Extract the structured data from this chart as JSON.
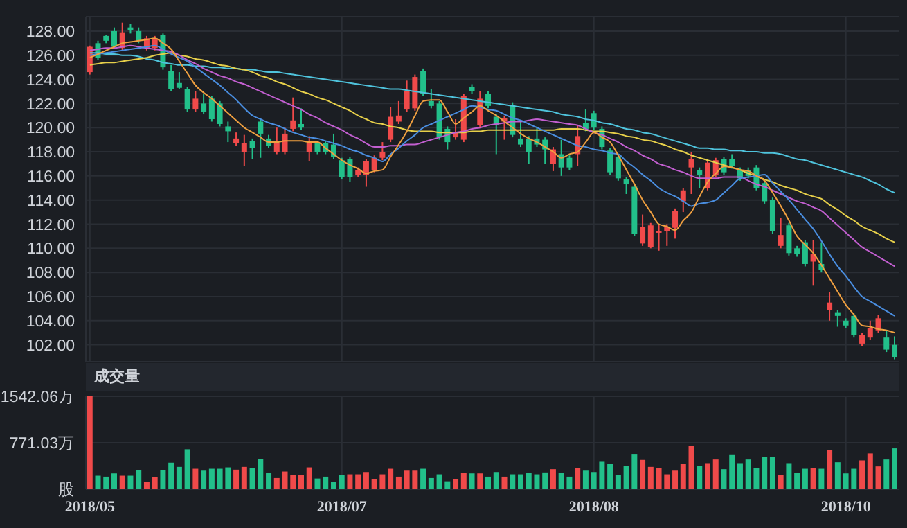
{
  "chart_data": [
    {
      "type": "candlestick",
      "categories": [
        "2018/05",
        null,
        null,
        null,
        null,
        null,
        null,
        null,
        null,
        null,
        null,
        null,
        null,
        null,
        null,
        null,
        null,
        null,
        null,
        null,
        null,
        null,
        null,
        null,
        null,
        null,
        null,
        null,
        null,
        null,
        null,
        "2018/07",
        null,
        null,
        null,
        null,
        null,
        null,
        null,
        null,
        null,
        null,
        null,
        null,
        null,
        null,
        null,
        null,
        null,
        null,
        null,
        null,
        null,
        null,
        null,
        null,
        null,
        null,
        null,
        null,
        null,
        null,
        "2018/08",
        null,
        null,
        null,
        null,
        null,
        null,
        null,
        null,
        null,
        null,
        null,
        null,
        null,
        null,
        null,
        null,
        null,
        null,
        null,
        null,
        null,
        null,
        null,
        null,
        null,
        null,
        null,
        null,
        null,
        null,
        "2018/10",
        null,
        null,
        null,
        null,
        null,
        null
      ],
      "ohlc": [
        [
          124.6,
          126.8,
          124.4,
          126.7
        ],
        [
          127.0,
          127.2,
          125.6,
          125.8
        ],
        [
          127.6,
          127.7,
          127.0,
          127.2
        ],
        [
          128.0,
          128.3,
          126.5,
          126.7
        ],
        [
          126.6,
          128.7,
          126.4,
          127.9
        ],
        [
          128.3,
          128.6,
          127.8,
          128.1
        ],
        [
          128.0,
          128.3,
          127.0,
          127.2
        ],
        [
          126.6,
          127.6,
          126.4,
          127.4
        ],
        [
          126.6,
          127.6,
          126.4,
          127.4
        ],
        [
          127.7,
          127.8,
          124.8,
          125.0
        ],
        [
          124.7,
          125.2,
          123.0,
          123.2
        ],
        [
          123.7,
          124.6,
          123.2,
          123.3
        ],
        [
          123.2,
          123.4,
          121.3,
          121.5
        ],
        [
          121.5,
          123.0,
          121.3,
          122.4
        ],
        [
          122.0,
          122.8,
          121.1,
          121.3
        ],
        [
          122.4,
          122.6,
          120.5,
          120.7
        ],
        [
          122.0,
          122.2,
          120.1,
          120.3
        ],
        [
          120.1,
          120.5,
          118.8,
          119.7
        ],
        [
          118.7,
          119.6,
          118.5,
          119.1
        ],
        [
          118.0,
          119.4,
          116.8,
          118.7
        ],
        [
          118.9,
          119.1,
          117.4,
          118.3
        ],
        [
          120.5,
          120.7,
          117.5,
          119.5
        ],
        [
          119.1,
          119.4,
          118.3,
          118.5
        ],
        [
          118.0,
          120.0,
          117.8,
          118.7
        ],
        [
          118.0,
          120.0,
          117.8,
          119.5
        ],
        [
          119.9,
          122.5,
          119.7,
          120.6
        ],
        [
          120.3,
          121.6,
          119.8,
          120.0
        ],
        [
          118.0,
          119.3,
          117.2,
          118.7
        ],
        [
          118.7,
          118.9,
          117.8,
          118.0
        ],
        [
          118.7,
          118.9,
          117.8,
          118.0
        ],
        [
          118.6,
          119.5,
          117.4,
          117.6
        ],
        [
          117.3,
          117.5,
          115.7,
          115.9
        ],
        [
          117.4,
          117.6,
          115.5,
          115.9
        ],
        [
          116.1,
          116.7,
          115.9,
          116.5
        ],
        [
          116.1,
          117.4,
          115.1,
          117.2
        ],
        [
          116.5,
          117.7,
          116.3,
          117.5
        ],
        [
          117.5,
          118.8,
          117.3,
          118.0
        ],
        [
          119.0,
          121.7,
          118.8,
          120.9
        ],
        [
          120.5,
          122.2,
          120.3,
          121.0
        ],
        [
          121.5,
          123.9,
          121.3,
          123.0
        ],
        [
          121.6,
          124.4,
          121.4,
          124.2
        ],
        [
          124.7,
          124.9,
          122.6,
          122.8
        ],
        [
          122.2,
          123.2,
          121.6,
          121.8
        ],
        [
          122.0,
          122.2,
          119.0,
          119.2
        ],
        [
          119.9,
          120.1,
          118.2,
          118.8
        ],
        [
          119.2,
          120.7,
          119.0,
          119.6
        ],
        [
          119.0,
          122.8,
          118.8,
          122.6
        ],
        [
          123.4,
          123.6,
          122.8,
          123.0
        ],
        [
          120.2,
          123.0,
          120.0,
          122.4
        ],
        [
          122.8,
          123.0,
          121.6,
          121.8
        ],
        [
          120.9,
          121.1,
          117.8,
          120.2
        ],
        [
          120.5,
          121.0,
          119.0,
          120.8
        ],
        [
          121.9,
          122.1,
          119.2,
          119.4
        ],
        [
          119.1,
          120.5,
          118.4,
          118.6
        ],
        [
          119.1,
          119.3,
          117.0,
          118.0
        ],
        [
          119.1,
          120.0,
          118.4,
          118.6
        ],
        [
          119.0,
          119.2,
          117.0,
          118.2
        ],
        [
          117.0,
          118.4,
          116.4,
          118.2
        ],
        [
          117.8,
          119.0,
          116.0,
          116.7
        ],
        [
          117.5,
          117.7,
          116.5,
          116.7
        ],
        [
          117.8,
          120.2,
          116.8,
          119.3
        ],
        [
          120.4,
          121.5,
          119.7,
          119.9
        ],
        [
          121.2,
          121.4,
          119.8,
          120.0
        ],
        [
          119.9,
          120.1,
          118.2,
          118.4
        ],
        [
          118.1,
          118.3,
          116.1,
          116.3
        ],
        [
          117.6,
          117.8,
          115.6,
          115.8
        ],
        [
          115.7,
          115.9,
          114.5,
          115.3
        ],
        [
          115.1,
          115.3,
          111.0,
          111.2
        ],
        [
          110.4,
          112.8,
          110.2,
          111.8
        ],
        [
          110.1,
          112.1,
          110.0,
          111.9
        ],
        [
          111.3,
          112.0,
          109.8,
          111.4
        ],
        [
          111.4,
          112.0,
          110.2,
          111.8
        ],
        [
          111.7,
          113.3,
          110.8,
          113.1
        ],
        [
          113.9,
          115.0,
          113.0,
          114.8
        ],
        [
          116.7,
          118.0,
          114.5,
          117.4
        ],
        [
          116.5,
          116.7,
          115.0,
          116.1
        ],
        [
          115.0,
          117.3,
          114.8,
          117.1
        ],
        [
          116.1,
          117.5,
          115.9,
          117.3
        ],
        [
          117.4,
          117.6,
          116.1,
          116.3
        ],
        [
          117.4,
          117.8,
          116.6,
          116.8
        ],
        [
          116.5,
          116.7,
          115.6,
          115.8
        ],
        [
          116.5,
          116.7,
          115.8,
          116.0
        ],
        [
          116.7,
          116.9,
          114.8,
          115.0
        ],
        [
          115.4,
          115.6,
          113.7,
          113.9
        ],
        [
          114.0,
          114.2,
          111.2,
          111.4
        ],
        [
          110.2,
          112.5,
          110.0,
          111.1
        ],
        [
          111.9,
          112.1,
          109.4,
          109.6
        ],
        [
          110.0,
          110.2,
          109.3,
          109.5
        ],
        [
          110.5,
          110.7,
          108.5,
          108.7
        ],
        [
          108.9,
          110.7,
          106.9,
          109.5
        ],
        [
          108.7,
          110.5,
          108.0,
          108.2
        ],
        [
          104.9,
          106.4,
          104.0,
          105.5
        ],
        [
          104.7,
          104.9,
          103.5,
          104.4
        ],
        [
          104.0,
          104.2,
          103.4,
          103.6
        ],
        [
          104.4,
          104.6,
          102.6,
          102.8
        ],
        [
          102.1,
          103.0,
          101.9,
          102.8
        ],
        [
          102.6,
          104.0,
          102.4,
          103.4
        ],
        [
          103.2,
          104.5,
          103.0,
          104.2
        ],
        [
          102.6,
          103.2,
          101.4,
          101.6
        ],
        [
          102.0,
          102.7,
          100.8,
          101.0
        ]
      ],
      "colors": [
        "#f04a4a",
        "#22c08a",
        "#22c08a",
        "#22c08a",
        "#f04a4a",
        "#22c08a",
        "#22c08a",
        "#f04a4a",
        "#f04a4a",
        "#22c08a",
        "#22c08a",
        "#22c08a",
        "#22c08a",
        "#f04a4a",
        "#22c08a",
        "#22c08a",
        "#22c08a",
        "#22c08a",
        "#f04a4a",
        "#f04a4a",
        "#22c08a",
        "#22c08a",
        "#22c08a",
        "#f04a4a",
        "#f04a4a",
        "#f04a4a",
        "#22c08a",
        "#f04a4a",
        "#22c08a",
        "#22c08a",
        "#22c08a",
        "#22c08a",
        "#22c08a",
        "#f04a4a",
        "#f04a4a",
        "#f04a4a",
        "#f04a4a",
        "#f04a4a",
        "#f04a4a",
        "#f04a4a",
        "#f04a4a",
        "#22c08a",
        "#22c08a",
        "#22c08a",
        "#22c08a",
        "#f04a4a",
        "#f04a4a",
        "#22c08a",
        "#f04a4a",
        "#22c08a",
        "#22c08a",
        "#f04a4a",
        "#22c08a",
        "#22c08a",
        "#22c08a",
        "#22c08a",
        "#22c08a",
        "#f04a4a",
        "#22c08a",
        "#22c08a",
        "#f04a4a",
        "#22c08a",
        "#22c08a",
        "#22c08a",
        "#22c08a",
        "#22c08a",
        "#22c08a",
        "#22c08a",
        "#f04a4a",
        "#f04a4a",
        "#f04a4a",
        "#f04a4a",
        "#f04a4a",
        "#f04a4a",
        "#f04a4a",
        "#22c08a",
        "#f04a4a",
        "#f04a4a",
        "#22c08a",
        "#22c08a",
        "#22c08a",
        "#22c08a",
        "#22c08a",
        "#22c08a",
        "#22c08a",
        "#f04a4a",
        "#22c08a",
        "#22c08a",
        "#22c08a",
        "#f04a4a",
        "#22c08a",
        "#f04a4a",
        "#22c08a",
        "#22c08a",
        "#22c08a",
        "#f04a4a",
        "#f04a4a",
        "#f04a4a",
        "#22c08a",
        "#22c08a"
      ],
      "series": [
        {
          "type": "line",
          "color": "#4fc3dc",
          "values": [
            126.2,
            126.2,
            126.1,
            126.1,
            126.0,
            126.0,
            125.9,
            125.7,
            125.6,
            125.4,
            125.3,
            125.2,
            125.2,
            125.1,
            125.1,
            125.0,
            125.0,
            124.9,
            124.9,
            124.8,
            124.8,
            124.7,
            124.6,
            124.6,
            124.5,
            124.4,
            124.3,
            124.2,
            124.1,
            124.0,
            123.9,
            123.8,
            123.7,
            123.6,
            123.5,
            123.4,
            123.3,
            123.2,
            123.2,
            123.1,
            123.0,
            122.9,
            122.8,
            122.7,
            122.6,
            122.5,
            122.4,
            122.3,
            122.2,
            122.1,
            122.0,
            121.9,
            121.8,
            121.7,
            121.6,
            121.5,
            121.4,
            121.3,
            121.1,
            121.0,
            120.9,
            120.7,
            120.6,
            120.4,
            120.3,
            120.1,
            119.9,
            119.8,
            119.6,
            119.5,
            119.3,
            119.1,
            118.9,
            118.7,
            118.5,
            118.3,
            118.3,
            118.2,
            118.2,
            118.1,
            118.1,
            118.0,
            118.0,
            117.9,
            117.9,
            117.8,
            117.6,
            117.4,
            117.3,
            117.1,
            116.9,
            116.7,
            116.5,
            116.3,
            116.1,
            115.9,
            115.6,
            115.3,
            114.9,
            114.6
          ]
        },
        {
          "type": "line",
          "color": "#e6cf4a",
          "values": [
            125.2,
            125.3,
            125.4,
            125.4,
            125.5,
            125.6,
            125.7,
            125.8,
            126.0,
            126.1,
            126.2,
            126.0,
            125.9,
            125.7,
            125.6,
            125.4,
            125.2,
            125.1,
            124.9,
            124.8,
            124.6,
            124.3,
            124.1,
            123.8,
            123.6,
            123.3,
            123.0,
            122.8,
            122.5,
            122.3,
            122.0,
            121.7,
            121.4,
            121.0,
            120.7,
            120.4,
            120.3,
            120.1,
            120.0,
            119.8,
            119.7,
            119.7,
            119.7,
            119.6,
            119.6,
            119.6,
            119.6,
            119.7,
            119.7,
            119.8,
            119.8,
            119.8,
            119.8,
            119.8,
            119.8,
            119.8,
            119.8,
            119.8,
            119.9,
            119.9,
            119.9,
            119.8,
            119.7,
            119.7,
            119.6,
            119.5,
            119.3,
            119.2,
            119.0,
            118.9,
            118.7,
            118.5,
            118.2,
            118.0,
            117.7,
            117.5,
            117.3,
            117.1,
            116.9,
            116.7,
            116.5,
            116.2,
            116.0,
            115.7,
            115.5,
            115.2,
            115.0,
            114.8,
            114.5,
            114.3,
            114.1,
            113.6,
            113.2,
            112.7,
            112.3,
            111.8,
            111.5,
            111.2,
            110.8,
            110.5
          ]
        },
        {
          "type": "line",
          "color": "#c25fd0",
          "values": [
            126.4,
            126.5,
            126.6,
            126.6,
            126.7,
            126.8,
            126.7,
            126.6,
            126.5,
            126.4,
            126.3,
            126.0,
            125.6,
            125.3,
            124.9,
            124.6,
            124.3,
            124.1,
            123.8,
            123.6,
            123.3,
            123.0,
            122.7,
            122.4,
            122.1,
            121.8,
            121.5,
            121.1,
            120.8,
            120.4,
            120.1,
            119.8,
            119.4,
            119.1,
            118.7,
            118.4,
            118.4,
            118.5,
            118.5,
            118.6,
            118.6,
            118.8,
            119.0,
            119.2,
            119.4,
            119.6,
            119.7,
            119.9,
            120.0,
            120.2,
            120.3,
            120.4,
            120.5,
            120.5,
            120.6,
            120.7,
            120.6,
            120.5,
            120.4,
            120.3,
            120.2,
            119.9,
            119.6,
            119.4,
            119.1,
            118.8,
            118.4,
            118.1,
            117.7,
            117.4,
            117.0,
            116.8,
            116.5,
            116.3,
            116.0,
            115.8,
            115.8,
            115.8,
            115.9,
            115.9,
            115.9,
            115.6,
            115.3,
            115.1,
            114.8,
            114.5,
            114.2,
            113.9,
            113.7,
            113.4,
            113.1,
            112.5,
            111.9,
            111.3,
            110.7,
            110.1,
            109.7,
            109.3,
            108.9,
            108.5
          ]
        },
        {
          "type": "line",
          "color": "#4a8ee0",
          "values": [
            126.0,
            126.1,
            126.2,
            126.3,
            126.4,
            126.5,
            126.6,
            126.7,
            126.8,
            126.5,
            126.1,
            125.8,
            125.5,
            125.0,
            124.5,
            124.0,
            123.5,
            122.9,
            122.3,
            121.6,
            121.0,
            120.7,
            120.4,
            120.2,
            119.9,
            119.6,
            119.4,
            119.2,
            119.1,
            118.9,
            118.7,
            118.5,
            118.2,
            118.0,
            117.7,
            117.5,
            117.2,
            117.8,
            118.3,
            118.9,
            119.4,
            120.0,
            120.3,
            120.6,
            120.9,
            121.2,
            121.5,
            121.8,
            121.7,
            121.5,
            121.4,
            121.1,
            120.8,
            120.6,
            120.3,
            120.0,
            119.7,
            119.4,
            119.1,
            118.8,
            118.5,
            118.4,
            118.2,
            118.1,
            117.9,
            117.8,
            117.2,
            116.7,
            116.1,
            115.6,
            115.0,
            114.6,
            114.3,
            113.9,
            113.5,
            113.7,
            113.8,
            114.0,
            114.6,
            115.2,
            115.8,
            115.9,
            116.0,
            116.1,
            115.4,
            114.7,
            114.0,
            113.2,
            112.4,
            111.6,
            110.6,
            109.5,
            108.5,
            107.7,
            106.8,
            106.0,
            105.6,
            105.2,
            104.8,
            104.4
          ]
        },
        {
          "type": "line",
          "color": "#f0a040",
          "values": [
            125.8,
            126.1,
            126.4,
            126.7,
            127.0,
            127.1,
            127.2,
            127.3,
            127.4,
            127.0,
            126.5,
            125.5,
            124.5,
            123.5,
            122.9,
            122.4,
            121.8,
            121.2,
            120.6,
            120.0,
            119.6,
            119.2,
            118.8,
            118.8,
            118.9,
            118.9,
            118.9,
            118.8,
            118.8,
            118.3,
            117.8,
            117.3,
            116.9,
            116.6,
            116.2,
            116.4,
            116.5,
            117.6,
            118.6,
            119.7,
            121.0,
            122.2,
            122.3,
            122.3,
            121.3,
            120.3,
            120.8,
            121.3,
            121.8,
            121.4,
            121.0,
            120.5,
            120.0,
            119.5,
            119.1,
            118.8,
            118.4,
            118.0,
            117.5,
            117.8,
            118.0,
            118.8,
            119.6,
            119.2,
            118.8,
            117.7,
            116.5,
            115.3,
            114.0,
            113.0,
            112.0,
            111.8,
            111.5,
            112.3,
            113.0,
            114.3,
            115.5,
            116.2,
            116.8,
            116.7,
            116.5,
            116.4,
            116.0,
            115.6,
            114.6,
            113.5,
            112.3,
            111.0,
            110.3,
            109.6,
            108.6,
            107.5,
            106.4,
            105.3,
            104.5,
            103.6,
            103.5,
            103.3,
            103.2,
            103.0
          ]
        }
      ],
      "ylim": [
        100.6,
        129.2
      ],
      "yticks": [
        {
          "value": 102,
          "label": "102.00"
        },
        {
          "value": 104,
          "label": "104.00"
        },
        {
          "value": 106,
          "label": "106.00"
        },
        {
          "value": 108,
          "label": "108.00"
        },
        {
          "value": 110,
          "label": "110.00"
        },
        {
          "value": 112,
          "label": "112.00"
        },
        {
          "value": 114,
          "label": "114.00"
        },
        {
          "value": 116,
          "label": "116.00"
        },
        {
          "value": 118,
          "label": "118.00"
        },
        {
          "value": 120,
          "label": "120.00"
        },
        {
          "value": 122,
          "label": "122.00"
        },
        {
          "value": 124,
          "label": "124.00"
        },
        {
          "value": 126,
          "label": "126.00"
        },
        {
          "value": 128,
          "label": "128.00"
        }
      ],
      "grid": true,
      "tick_labels": "y"
    },
    {
      "type": "bar",
      "title": "成交量",
      "categories": [
        "2018/05",
        null,
        null,
        null,
        null,
        null,
        null,
        null,
        null,
        null,
        null,
        null,
        null,
        null,
        null,
        null,
        null,
        null,
        null,
        null,
        null,
        null,
        null,
        null,
        null,
        null,
        null,
        null,
        null,
        null,
        null,
        "2018/07",
        null,
        null,
        null,
        null,
        null,
        null,
        null,
        null,
        null,
        null,
        null,
        null,
        null,
        null,
        null,
        null,
        null,
        null,
        null,
        null,
        null,
        null,
        null,
        null,
        null,
        null,
        null,
        null,
        null,
        null,
        "2018/08",
        null,
        null,
        null,
        null,
        null,
        null,
        null,
        null,
        null,
        null,
        null,
        null,
        null,
        null,
        null,
        null,
        null,
        null,
        null,
        null,
        null,
        null,
        null,
        null,
        null,
        null,
        null,
        null,
        null,
        null,
        "2018/10",
        null,
        null,
        null,
        null,
        null,
        null
      ],
      "values": [
        1542,
        224,
        208,
        262,
        224,
        224,
        316,
        116,
        200,
        316,
        440,
        370,
        663,
        339,
        308,
        339,
        339,
        362,
        324,
        370,
        347,
        501,
        270,
        185,
        293,
        239,
        239,
        362,
        177,
        208,
        123,
        231,
        247,
        247,
        285,
        170,
        247,
        339,
        208,
        308,
        308,
        339,
        185,
        247,
        131,
        170,
        270,
        262,
        262,
        208,
        285,
        208,
        247,
        247,
        270,
        247,
        278,
        332,
        270,
        208,
        355,
        308,
        285,
        455,
        424,
        231,
        386,
        586,
        486,
        370,
        355,
        247,
        308,
        416,
        717,
        386,
        432,
        493,
        332,
        578,
        432,
        493,
        355,
        532,
        532,
        239,
        432,
        270,
        339,
        355,
        339,
        648,
        447,
        262,
        339,
        478,
        594,
        378,
        493,
        678
      ],
      "colors": [
        "#f04a4a",
        "#22c08a",
        "#22c08a",
        "#22c08a",
        "#f04a4a",
        "#22c08a",
        "#22c08a",
        "#f04a4a",
        "#f04a4a",
        "#22c08a",
        "#22c08a",
        "#22c08a",
        "#22c08a",
        "#f04a4a",
        "#22c08a",
        "#22c08a",
        "#22c08a",
        "#22c08a",
        "#f04a4a",
        "#f04a4a",
        "#22c08a",
        "#22c08a",
        "#22c08a",
        "#f04a4a",
        "#f04a4a",
        "#f04a4a",
        "#f04a4a",
        "#f04a4a",
        "#22c08a",
        "#22c08a",
        "#22c08a",
        "#22c08a",
        "#f04a4a",
        "#f04a4a",
        "#f04a4a",
        "#f04a4a",
        "#f04a4a",
        "#f04a4a",
        "#f04a4a",
        "#f04a4a",
        "#f04a4a",
        "#22c08a",
        "#22c08a",
        "#22c08a",
        "#22c08a",
        "#f04a4a",
        "#f04a4a",
        "#22c08a",
        "#f04a4a",
        "#22c08a",
        "#22c08a",
        "#f04a4a",
        "#22c08a",
        "#22c08a",
        "#22c08a",
        "#22c08a",
        "#22c08a",
        "#f04a4a",
        "#22c08a",
        "#22c08a",
        "#f04a4a",
        "#22c08a",
        "#22c08a",
        "#22c08a",
        "#22c08a",
        "#22c08a",
        "#22c08a",
        "#22c08a",
        "#f04a4a",
        "#f04a4a",
        "#f04a4a",
        "#f04a4a",
        "#f04a4a",
        "#f04a4a",
        "#f04a4a",
        "#22c08a",
        "#f04a4a",
        "#f04a4a",
        "#22c08a",
        "#22c08a",
        "#22c08a",
        "#22c08a",
        "#22c08a",
        "#22c08a",
        "#22c08a",
        "#f04a4a",
        "#22c08a",
        "#22c08a",
        "#22c08a",
        "#f04a4a",
        "#22c08a",
        "#f04a4a",
        "#22c08a",
        "#22c08a",
        "#22c08a",
        "#f04a4a",
        "#f04a4a",
        "#f04a4a",
        "#22c08a",
        "#22c08a"
      ],
      "ylim": [
        0,
        1542.06
      ],
      "yticks": [
        {
          "value": 0,
          "label": "股"
        },
        {
          "value": 771.03,
          "label": "771.03万"
        },
        {
          "value": 1542.06,
          "label": "1542.06万"
        }
      ],
      "grid": true
    }
  ]
}
